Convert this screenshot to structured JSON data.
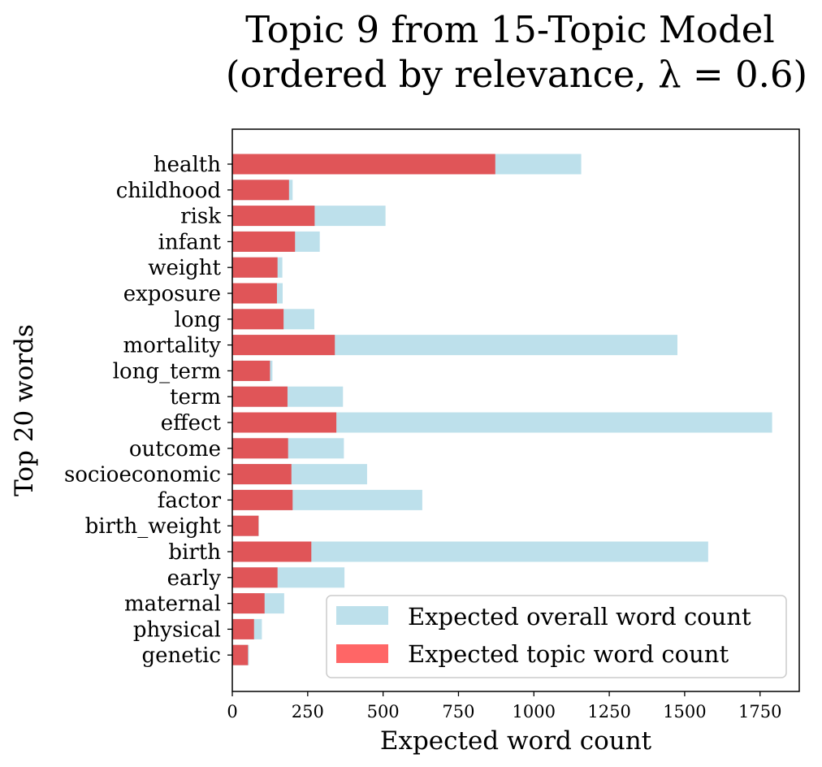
{
  "chart_data": {
    "type": "bar",
    "orientation": "horizontal",
    "title_lines": [
      "Topic 9 from 15-Topic Model",
      "(ordered by relevance, λ = 0.6)"
    ],
    "xlabel": "Expected word count",
    "ylabel": "Top 20 words",
    "categories": [
      "health",
      "childhood",
      "risk",
      "infant",
      "weight",
      "exposure",
      "long",
      "mortality",
      "long_term",
      "term",
      "effect",
      "outcome",
      "socioeconomic",
      "factor",
      "birth_weight",
      "birth",
      "early",
      "maternal",
      "physical",
      "genetic"
    ],
    "series": [
      {
        "name": "Expected overall word count",
        "color": "#add8e6",
        "values": [
          1157,
          200,
          508,
          290,
          166,
          167,
          272,
          1476,
          133,
          367,
          1790,
          370,
          447,
          630,
          88,
          1578,
          372,
          172,
          98,
          55
        ]
      },
      {
        "name": "Expected topic word count",
        "color": "#e05558",
        "legend_color": "#ff6666",
        "values": [
          872,
          188,
          273,
          208,
          150,
          148,
          170,
          340,
          125,
          183,
          345,
          185,
          196,
          200,
          87,
          262,
          150,
          107,
          72,
          52
        ]
      }
    ],
    "xlim": [
      0,
      1880
    ],
    "xticks": [
      0,
      250,
      500,
      750,
      1000,
      1250,
      1500,
      1750
    ],
    "grid": false,
    "legend_position": "lower-right"
  }
}
